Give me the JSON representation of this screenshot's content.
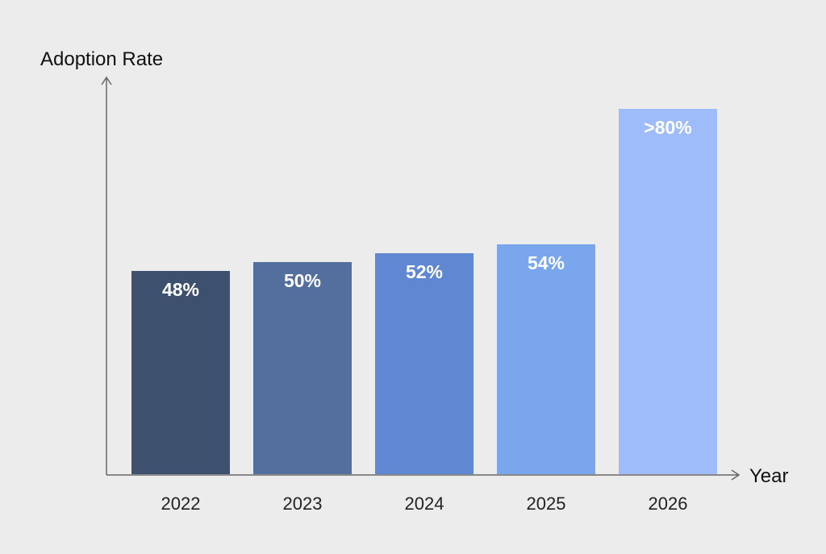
{
  "chart_data": {
    "type": "bar",
    "title": "",
    "ylabel": "Adoption Rate",
    "xlabel": "Year",
    "categories": [
      "2022",
      "2023",
      "2024",
      "2025",
      "2026"
    ],
    "values": [
      48,
      50,
      52,
      54,
      80
    ],
    "data_labels": [
      "48%",
      "50%",
      "52%",
      "54%",
      ">80%"
    ],
    "colors": [
      "#3d516f",
      "#536f9e",
      "#6087d2",
      "#79a6ec",
      "#9dbcf9"
    ],
    "ylim": [
      0,
      100
    ],
    "grid": false,
    "legend": "none"
  }
}
